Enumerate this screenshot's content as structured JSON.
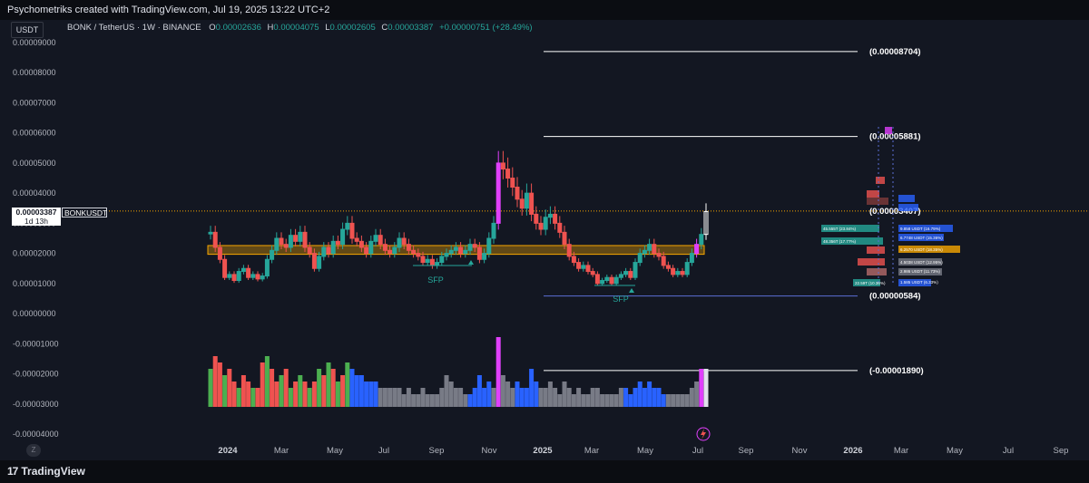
{
  "header": {
    "caption": "Psychometriks created with TradingView.com, Jul 19, 2025 13:22 UTC+2"
  },
  "legend": {
    "symbol": "BONK / TetherUS · 1W · BINANCE",
    "o_label": "O",
    "o_value": "0.00002636",
    "h_label": "H",
    "h_value": "0.00004075",
    "l_label": "L",
    "l_value": "0.00002605",
    "c_label": "C",
    "c_value": "0.00003387",
    "change": "+0.00000751 (+28.49%)"
  },
  "controls": {
    "currency_button": "USDT",
    "zoom_button": "Z"
  },
  "price_label": {
    "price": "0.00003387",
    "countdown": "1d 13h",
    "symbol": "BONKUSDT"
  },
  "footer": {
    "brand": "TradingView",
    "brand_mark": "17"
  },
  "colors": {
    "background": "#131722",
    "up": "#26a69a",
    "down": "#ef5350",
    "zone": "#f7a600",
    "level_line": "#ffffff",
    "sfp": "#26a69a",
    "vol_green": "#4caf50",
    "vol_red": "#ef5350",
    "vol_blue": "#2962ff",
    "vol_gray": "#787b86",
    "vol_magenta": "#e040fb"
  },
  "chart_data": {
    "type": "candlestick",
    "title": "BONK / TetherUS · 1W · BINANCE",
    "ylim": [
      -4e-05,
      9e-05
    ],
    "y_ticks": [
      "0.00009000",
      "0.00008000",
      "0.00007000",
      "0.00006000",
      "0.00005000",
      "0.00004000",
      "0.00003000",
      "0.00002000",
      "0.00001000",
      "0.00000000",
      "-0.00001000",
      "-0.00002000",
      "-0.00003000",
      "-0.00004000"
    ],
    "x_ticks": [
      {
        "label": "2024",
        "year": true
      },
      {
        "label": "Mar"
      },
      {
        "label": "May"
      },
      {
        "label": "Jul"
      },
      {
        "label": "Sep"
      },
      {
        "label": "Nov"
      },
      {
        "label": "2025",
        "year": true
      },
      {
        "label": "Mar"
      },
      {
        "label": "May"
      },
      {
        "label": "Jul"
      },
      {
        "label": "Sep"
      },
      {
        "label": "Nov"
      },
      {
        "label": "2026",
        "year": true
      },
      {
        "label": "Mar"
      },
      {
        "label": "May"
      },
      {
        "label": "Jul"
      },
      {
        "label": "Sep"
      }
    ],
    "levels": [
      {
        "value": 8.704e-05,
        "label": "(0.00008704)"
      },
      {
        "value": 5.881e-05,
        "label": "(0.00005881)"
      },
      {
        "value": 3.407e-05,
        "label": "(0.00003407)"
      },
      {
        "value": 5.84e-06,
        "label": "(0.00000584)"
      },
      {
        "value": -1.89e-05,
        "label": "(-0.00001890)"
      }
    ],
    "zone": {
      "top": 2.26e-05,
      "bottom": 1.97e-05
    },
    "annotations": [
      {
        "text": "SFP"
      },
      {
        "text": "SFP"
      }
    ],
    "series": [
      {
        "name": "BONKUSDT",
        "closes": [
          2.7e-05,
          2.2e-05,
          1.8e-05,
          1.2e-05,
          1.3e-05,
          1.1e-05,
          1.4e-05,
          1.5e-05,
          1.2e-05,
          1.3e-05,
          1.15e-05,
          1.25e-05,
          1.8e-05,
          2.1e-05,
          2.5e-05,
          2.3e-05,
          2.2e-05,
          2.6e-05,
          2.4e-05,
          2.7e-05,
          2.2e-05,
          2e-05,
          1.5e-05,
          1.9e-05,
          2.2e-05,
          2e-05,
          2.4e-05,
          2.3e-05,
          2.8e-05,
          3e-05,
          2.5e-05,
          2.4e-05,
          2.2e-05,
          2e-05,
          2.4e-05,
          2.6e-05,
          2.3e-05,
          2.1e-05,
          2e-05,
          2.2e-05,
          2.5e-05,
          2.3e-05,
          2.1e-05,
          2e-05,
          1.9e-05,
          1.7e-05,
          1.8e-05,
          1.6e-05,
          1.7e-05,
          1.9e-05,
          2e-05,
          2.1e-05,
          2.2e-05,
          2e-05,
          2.1e-05,
          2.3e-05,
          2.2e-05,
          1.8e-05,
          2e-05,
          2.5e-05,
          3e-05,
          5e-05,
          4.8e-05,
          4.5e-05,
          4.2e-05,
          3.8e-05,
          3.5e-05,
          4e-05,
          3.3e-05,
          3e-05,
          2.8e-05,
          3.2e-05,
          3.3e-05,
          3e-05,
          2.7e-05,
          2.3e-05,
          1.9e-05,
          1.7e-05,
          1.5e-05,
          1.6e-05,
          1.4e-05,
          1.3e-05,
          1e-05,
          1.1e-05,
          1.2e-05,
          1e-05,
          1.2e-05,
          1.3e-05,
          1.4e-05,
          1.2e-05,
          1.7e-05,
          2e-05,
          2.1e-05,
          2.3e-05,
          2e-05,
          1.9e-05,
          1.6e-05,
          1.5e-05,
          1.3e-05,
          1.4e-05,
          1.3e-05,
          1.7e-05,
          2e-05,
          2.3e-05,
          2.63e-05,
          3.39e-05
        ]
      }
    ],
    "volume": [
      6,
      8,
      7,
      5,
      6,
      4,
      3,
      5,
      4,
      3,
      3,
      7,
      8,
      6,
      4,
      5,
      6,
      3,
      4,
      5,
      4,
      3,
      4,
      6,
      5,
      7,
      6,
      4,
      5,
      7,
      6,
      5,
      5,
      4,
      4,
      4,
      3,
      3,
      3,
      3,
      3,
      2,
      3,
      2,
      2,
      3,
      2,
      2,
      2,
      3,
      5,
      4,
      3,
      3,
      2,
      2,
      3,
      5,
      3,
      4,
      3,
      11,
      5,
      4,
      3,
      4,
      3,
      3,
      6,
      4,
      3,
      3,
      4,
      3,
      2,
      4,
      3,
      2,
      3,
      2,
      2,
      3,
      3,
      2,
      2,
      2,
      2,
      3,
      3,
      2,
      3,
      4,
      3,
      4,
      3,
      3,
      2,
      2,
      2,
      2,
      2,
      2,
      3,
      4,
      6,
      6
    ]
  },
  "right_labels": {
    "rows": [
      "45.555T (23.84%)",
      "48.356T (17.77%)",
      "9.858 USDT (16.79%)",
      "6.7748 USDT (15.36%)",
      "6.2570 USDT (18.35%)",
      "4.5038 USDT (12.95%)",
      "2.986 USDT (11.73%)",
      "1.585 USDT (6.33%)",
      "22.59T (10.36%)"
    ]
  }
}
